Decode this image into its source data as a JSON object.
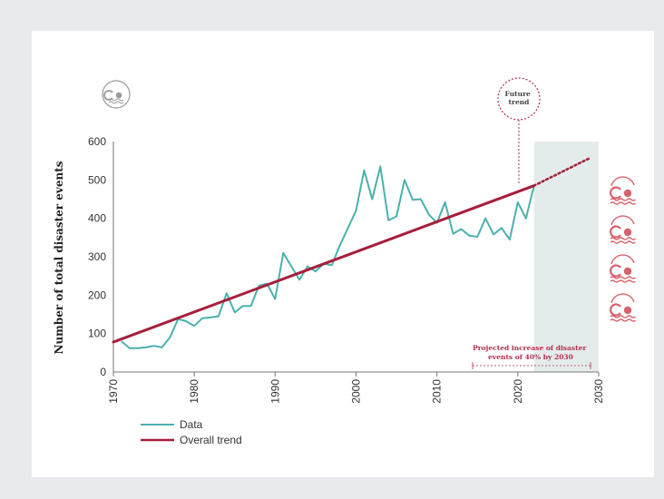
{
  "chart_data": {
    "type": "line",
    "ylabel": "Number of total disaster events",
    "xlim": [
      1970,
      2030
    ],
    "ylim": [
      0,
      600
    ],
    "x_ticks": [
      "1970",
      "1980",
      "1990",
      "2000",
      "2010",
      "2020",
      "2030"
    ],
    "y_ticks": [
      "0",
      "100",
      "200",
      "300",
      "400",
      "500",
      "600"
    ],
    "legend_position": "bottom-left",
    "series": [
      {
        "name": "Data",
        "color": "#4bb1ad",
        "points": [
          [
            1971,
            80
          ],
          [
            1972,
            62
          ],
          [
            1973,
            62
          ],
          [
            1974,
            64
          ],
          [
            1975,
            68
          ],
          [
            1976,
            64
          ],
          [
            1977,
            90
          ],
          [
            1978,
            138
          ],
          [
            1979,
            132
          ],
          [
            1980,
            120
          ],
          [
            1981,
            140
          ],
          [
            1982,
            142
          ],
          [
            1983,
            145
          ],
          [
            1984,
            205
          ],
          [
            1985,
            155
          ],
          [
            1986,
            172
          ],
          [
            1987,
            172
          ],
          [
            1988,
            225
          ],
          [
            1989,
            230
          ],
          [
            1990,
            190
          ],
          [
            1991,
            310
          ],
          [
            1992,
            275
          ],
          [
            1993,
            240
          ],
          [
            1994,
            275
          ],
          [
            1995,
            262
          ],
          [
            1996,
            282
          ],
          [
            1997,
            278
          ],
          [
            1998,
            330
          ],
          [
            1999,
            375
          ],
          [
            2000,
            420
          ],
          [
            2001,
            525
          ],
          [
            2002,
            450
          ],
          [
            2003,
            535
          ],
          [
            2004,
            395
          ],
          [
            2005,
            405
          ],
          [
            2006,
            500
          ],
          [
            2007,
            448
          ],
          [
            2008,
            450
          ],
          [
            2009,
            410
          ],
          [
            2010,
            388
          ],
          [
            2011,
            442
          ],
          [
            2012,
            360
          ],
          [
            2013,
            372
          ],
          [
            2014,
            355
          ],
          [
            2015,
            352
          ],
          [
            2016,
            400
          ],
          [
            2017,
            358
          ],
          [
            2018,
            375
          ],
          [
            2019,
            345
          ],
          [
            2020,
            442
          ],
          [
            2021,
            400
          ],
          [
            2022,
            485
          ]
        ]
      },
      {
        "name": "Overall trend",
        "color": "#a71e3b",
        "points": [
          [
            1970,
            78
          ],
          [
            2022,
            485
          ]
        ],
        "projection": [
          [
            2022,
            485
          ],
          [
            2029,
            558
          ]
        ]
      }
    ],
    "future_region": [
      2022,
      2030
    ],
    "annotations": {
      "future": "Future trend",
      "projected": "Projected increase of disaster events of 40% by 2030"
    }
  },
  "legend": {
    "data": "Data",
    "trend": "Overall trend"
  },
  "icons": {
    "header": "flood-icon",
    "side": [
      "flood-icon",
      "flood-icon",
      "flood-icon",
      "flood-icon"
    ],
    "side_color": "#d8626c",
    "header_color": "#999999"
  }
}
